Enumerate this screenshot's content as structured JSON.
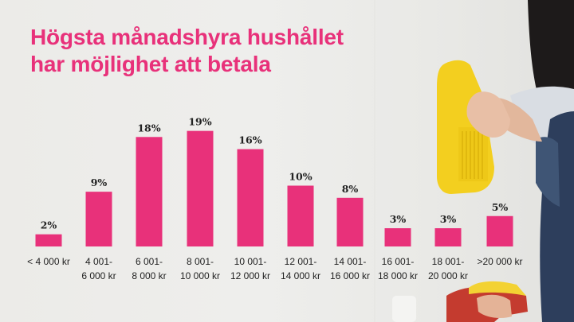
{
  "title": {
    "line1": "Högsta månadshyra hushållet",
    "line2": "har möjlighet att betala"
  },
  "colors": {
    "accent": "#e8317a"
  },
  "chart_data": {
    "type": "bar",
    "title": "Högsta månadshyra hushållet har möjlighet att betala",
    "categories": [
      [
        "< 4 000 kr"
      ],
      [
        "4 001-",
        "6 000 kr"
      ],
      [
        "6 001-",
        "8 000 kr"
      ],
      [
        "8 001-",
        "10 000 kr"
      ],
      [
        "10 001-",
        "12 000 kr"
      ],
      [
        "12 001-",
        "14 000 kr"
      ],
      [
        "14 001-",
        "16 000 kr"
      ],
      [
        "16 001-",
        "18 000 kr"
      ],
      [
        "18 001-",
        "20 000 kr"
      ],
      [
        ">20 000 kr"
      ]
    ],
    "values": [
      2,
      9,
      18,
      19,
      16,
      10,
      8,
      3,
      3,
      5
    ],
    "value_labels": [
      "2%",
      "9%",
      "18%",
      "19%",
      "16%",
      "10%",
      "8%",
      "3%",
      "3%",
      "5%"
    ],
    "unit": "%",
    "grid": false,
    "legend": "none"
  }
}
